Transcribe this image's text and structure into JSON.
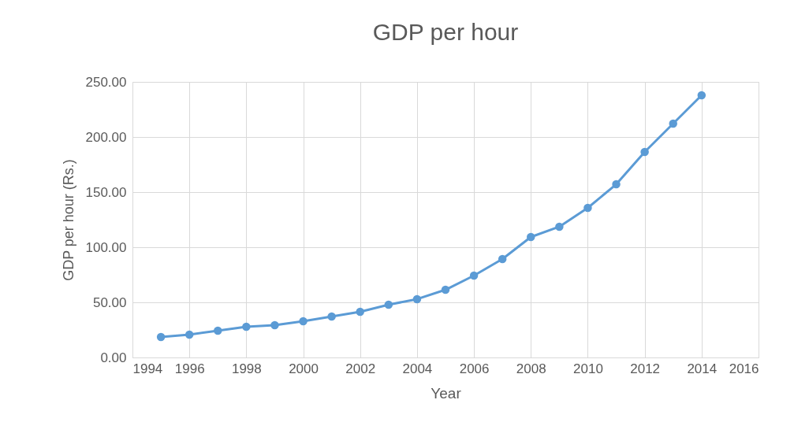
{
  "chart_data": {
    "type": "line",
    "title": "GDP per hour",
    "xlabel": "Year",
    "ylabel": "GDP per hour (Rs.)",
    "x": [
      1995,
      1996,
      1997,
      1998,
      1999,
      2000,
      2001,
      2002,
      2003,
      2004,
      2005,
      2006,
      2007,
      2008,
      2009,
      2010,
      2011,
      2012,
      2013,
      2014
    ],
    "series": [
      {
        "color": "#5b9bd5",
        "values": [
          18.6,
          20.7,
          24.3,
          27.9,
          29.3,
          32.9,
          37.1,
          41.4,
          47.9,
          52.9,
          61.4,
          74.3,
          89.3,
          109.3,
          118.6,
          135.7,
          157.1,
          186.4,
          212.1,
          237.9
        ]
      }
    ],
    "xlim": [
      1994,
      2016
    ],
    "xticks": [
      1994,
      1996,
      1998,
      2000,
      2002,
      2004,
      2006,
      2008,
      2010,
      2012,
      2014,
      2016
    ],
    "ylim": [
      0,
      250
    ],
    "yticks": [
      {
        "value": 0,
        "label": "0.00"
      },
      {
        "value": 50,
        "label": "50.00"
      },
      {
        "value": 100,
        "label": "100.00"
      },
      {
        "value": 150,
        "label": "150.00"
      },
      {
        "value": 200,
        "label": "200.00"
      },
      {
        "value": 250,
        "label": "250.00"
      }
    ],
    "grid": true,
    "marker": "circle",
    "line_style": "solid"
  }
}
